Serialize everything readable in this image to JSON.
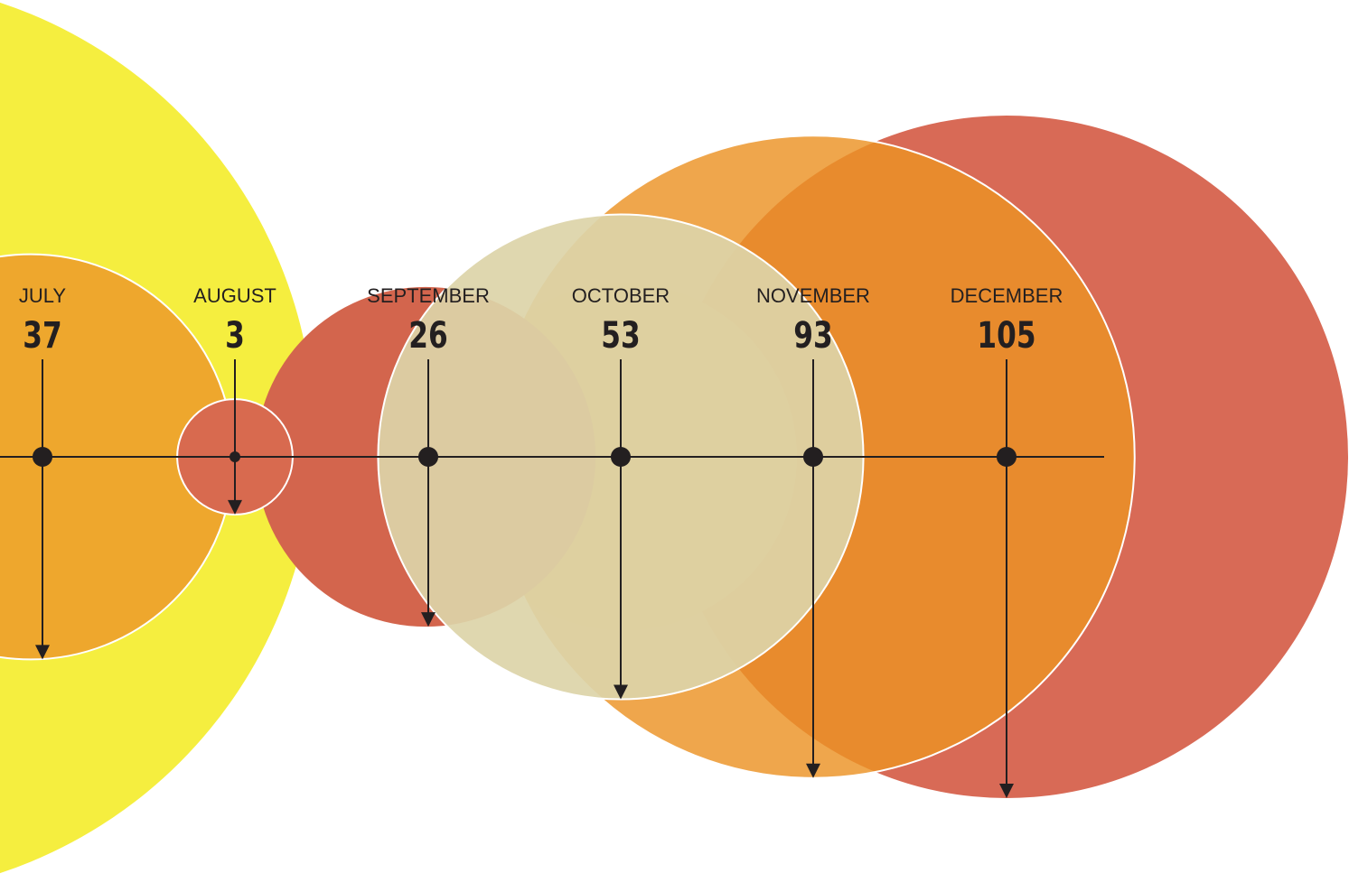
{
  "chart_data": {
    "type": "bubble",
    "categories": [
      "JULY",
      "AUGUST",
      "SEPTEMBER",
      "OCTOBER",
      "NOVEMBER",
      "DECEMBER"
    ],
    "values": [
      37,
      3,
      26,
      53,
      93,
      105
    ],
    "colors": {
      "JULY": "#eea72d",
      "AUGUST": "#d86a4f",
      "SEPTEMBER": "#d3654d",
      "OCTOBER": "#dcd4a8",
      "NOVEMBER": "#ec9225",
      "DECEMBER": "#d86a56",
      "background_yellow": "#f5ee3f",
      "october_pale": "#dde3d7",
      "axis": "#231f20"
    }
  }
}
